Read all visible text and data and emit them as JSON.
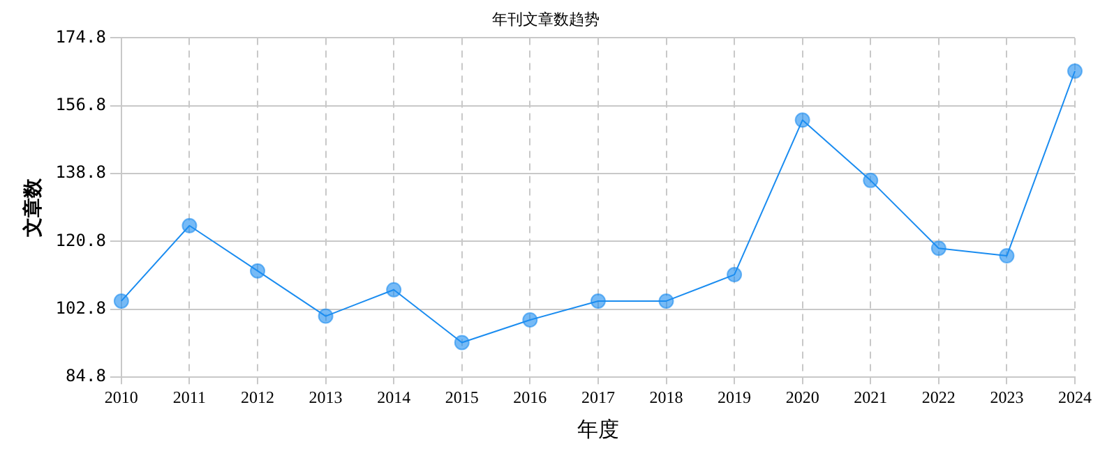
{
  "chart_data": {
    "type": "line",
    "title": "年刊文章数趋势",
    "xlabel": "年度",
    "ylabel": "文章数",
    "categories": [
      "2010",
      "2011",
      "2012",
      "2013",
      "2014",
      "2015",
      "2016",
      "2017",
      "2018",
      "2019",
      "2020",
      "2021",
      "2022",
      "2023",
      "2024"
    ],
    "series": [
      {
        "color": "#1a8cf0",
        "values": [
          105,
          125,
          113,
          101,
          108,
          94,
          100,
          105,
          105,
          112,
          153,
          137,
          119,
          117,
          166
        ]
      }
    ],
    "ylim": [
      84.8,
      174.8
    ],
    "yticks": [
      84.8,
      102.8,
      120.8,
      138.8,
      156.8,
      174.8
    ],
    "grid": true,
    "legend": false,
    "marker": "circle",
    "line_style": "solid"
  }
}
